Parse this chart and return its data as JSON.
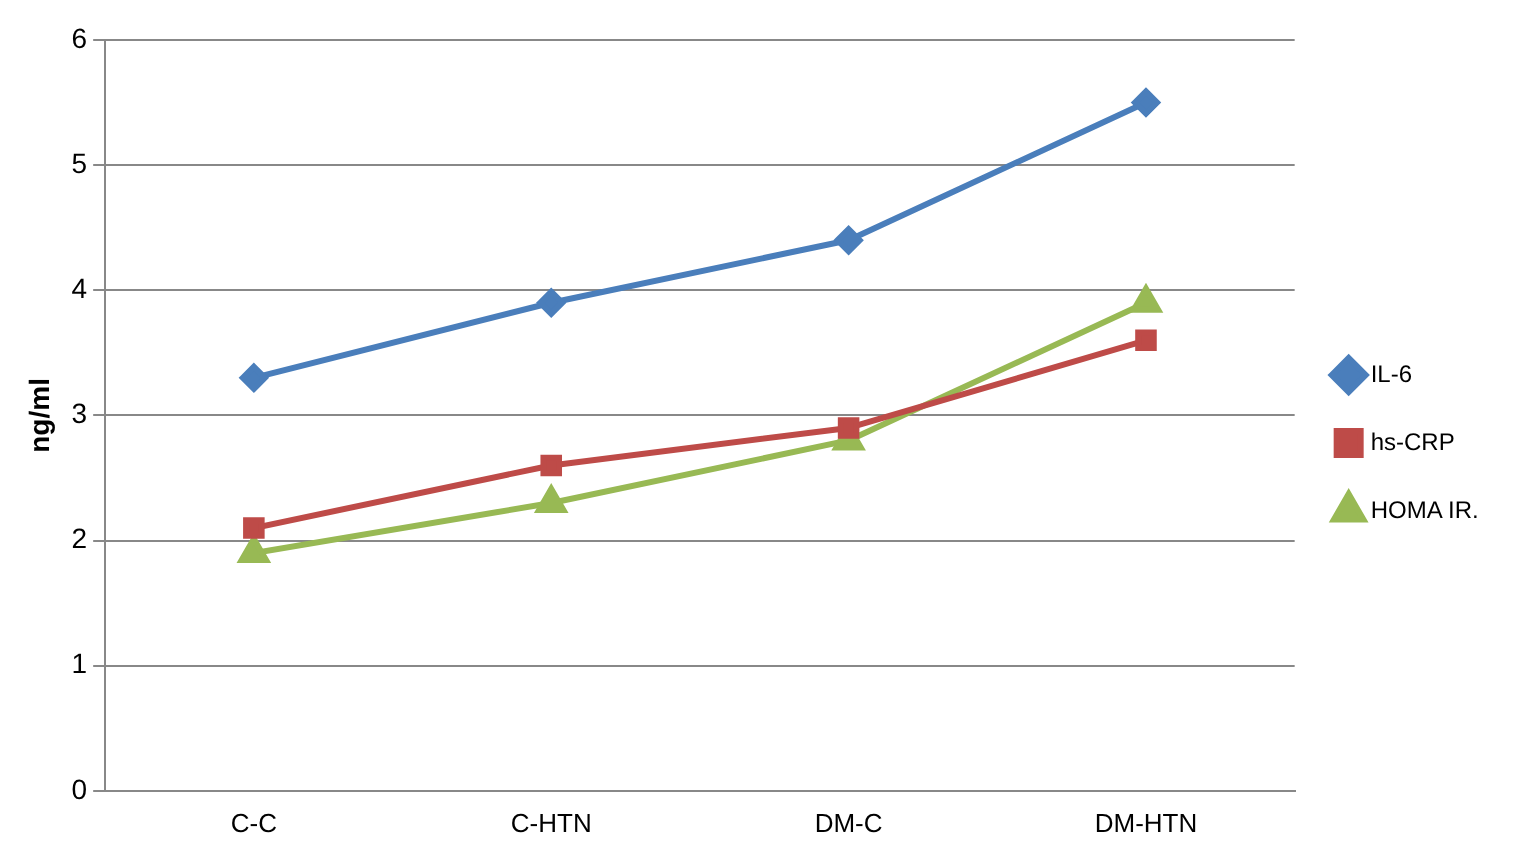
{
  "chart_data": {
    "type": "line",
    "ylabel": "ng/ml",
    "categories": [
      "C-C",
      "C-HTN",
      "DM-C",
      "DM-HTN"
    ],
    "series": [
      {
        "name": "IL-6",
        "color": "#4a7ebb",
        "marker": "diamond",
        "values": [
          3.3,
          3.9,
          4.4,
          5.5
        ]
      },
      {
        "name": "hs-CRP",
        "color": "#be4b48",
        "marker": "square",
        "values": [
          2.1,
          2.6,
          2.9,
          3.6
        ]
      },
      {
        "name": "HOMA IR.",
        "color": "#98b954",
        "marker": "triangle",
        "values": [
          1.9,
          2.3,
          2.8,
          3.9
        ]
      }
    ],
    "ylim": [
      0,
      6
    ],
    "yticks": [
      0,
      1,
      2,
      3,
      4,
      5,
      6
    ],
    "grid": "y",
    "legend": "right",
    "line_style": "solid"
  }
}
